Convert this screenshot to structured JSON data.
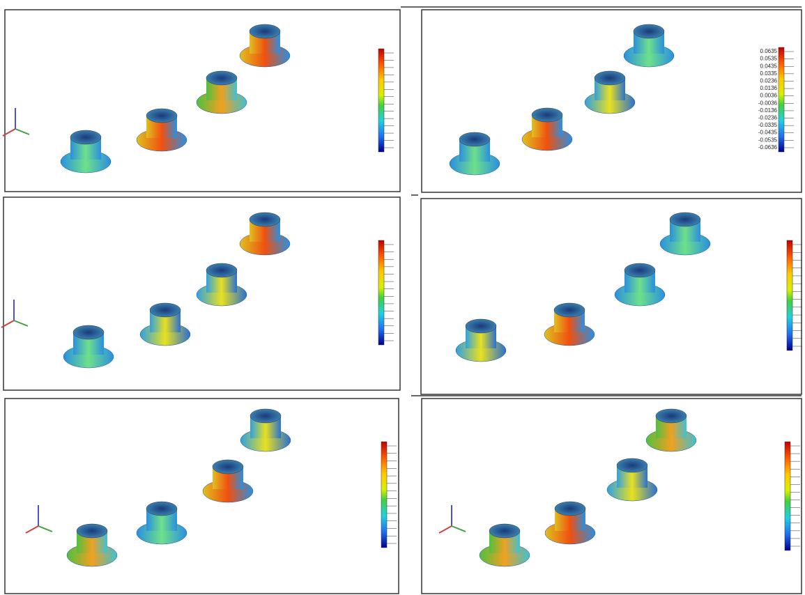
{
  "colorbar": {
    "labels": [
      "0.0635",
      "0.0535",
      "0.0435",
      "0.0335",
      "0.0236",
      "0.0136",
      "0.0036",
      "-0.0036",
      "-0.0136",
      "-0.0236",
      "-0.0335",
      "-0.0435",
      "-0.0535",
      "-0.0636"
    ]
  }
}
